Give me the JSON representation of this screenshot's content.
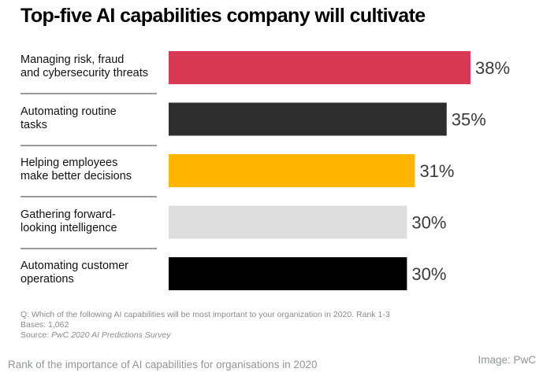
{
  "chart_data": {
    "type": "bar",
    "orientation": "horizontal",
    "title": "Top-five AI capabilities company will cultivate",
    "categories": [
      [
        "Managing risk, fraud",
        "and cybersecurity threats"
      ],
      [
        "Automating routine",
        "tasks"
      ],
      [
        "Helping employees",
        "make better decisions"
      ],
      [
        "Gathering forward-",
        "looking intelligence"
      ],
      [
        "Automating customer",
        "operations"
      ]
    ],
    "values": [
      38,
      35,
      31,
      30,
      30
    ],
    "value_labels": [
      "38%",
      "35%",
      "31%",
      "30%",
      "30%"
    ],
    "colors": [
      "#d93954",
      "#2d2d2d",
      "#ffb600",
      "#dedede",
      "#000000"
    ],
    "unit": "%",
    "xlabel": "",
    "ylabel": "",
    "grid": false,
    "legend": "none"
  },
  "notes": {
    "question": "Q: Which of the following AI capabilities will be most important to your organization in 2020. Rank 1-3",
    "bases": "Bases: 1,062",
    "source_prefix": "Source: ",
    "source_name": "PwC 2020 AI Predictions Survey"
  },
  "caption": "Rank of the importance of AI capabilities for organisations in 2020",
  "credit": "Image: PwC"
}
